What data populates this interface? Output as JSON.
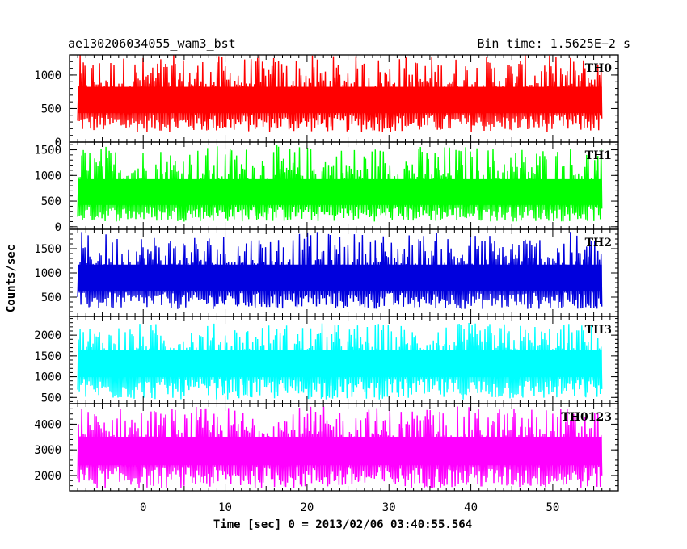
{
  "chart_data": {
    "type": "line",
    "title": "ae130206034055_wam3_bst",
    "subtitle": "Bin time: 1.5625E−2 s",
    "xlabel": "Time [sec] 0 = 2013/02/06 03:40:55.564",
    "ylabel": "Counts/sec",
    "xlim": [
      -9,
      58
    ],
    "x_range": [
      -8,
      56
    ],
    "x_ticks": [
      0,
      10,
      20,
      30,
      40,
      50
    ],
    "x_tick_labels": [
      "0",
      "10",
      "20",
      "30",
      "40",
      "50"
    ],
    "grid": false,
    "legend": "none",
    "series": [
      {
        "name": "TH0",
        "color": "#ff0000",
        "ylim": [
          0,
          1300
        ],
        "mean": 620,
        "low": 150,
        "high": 1300,
        "y_ticks": [
          0,
          500,
          1000
        ],
        "y_tick_labels": [
          "0",
          "500",
          "1000"
        ]
      },
      {
        "name": "TH1",
        "color": "#00ff00",
        "ylim": [
          -50,
          1650
        ],
        "mean": 640,
        "low": 100,
        "high": 1600,
        "y_ticks": [
          0,
          500,
          1000,
          1500
        ],
        "y_tick_labels": [
          "0",
          "500",
          "1000",
          "1500"
        ]
      },
      {
        "name": "TH2",
        "color": "#0000dd",
        "ylim": [
          100,
          1900
        ],
        "mean": 880,
        "low": 250,
        "high": 1850,
        "y_ticks": [
          500,
          1000,
          1500
        ],
        "y_tick_labels": [
          "500",
          "1000",
          "1500"
        ]
      },
      {
        "name": "TH3",
        "color": "#00ffff",
        "ylim": [
          350,
          2450
        ],
        "mean": 1350,
        "low": 450,
        "high": 2300,
        "y_ticks": [
          500,
          1000,
          1500,
          2000
        ],
        "y_tick_labels": [
          "500",
          "1000",
          "1500",
          "2000"
        ]
      },
      {
        "name": "TH0123",
        "color": "#ff00ff",
        "ylim": [
          1400,
          4800
        ],
        "mean": 3000,
        "low": 1500,
        "high": 4700,
        "y_ticks": [
          2000,
          3000,
          4000
        ],
        "y_tick_labels": [
          "2000",
          "3000",
          "4000"
        ]
      }
    ]
  }
}
